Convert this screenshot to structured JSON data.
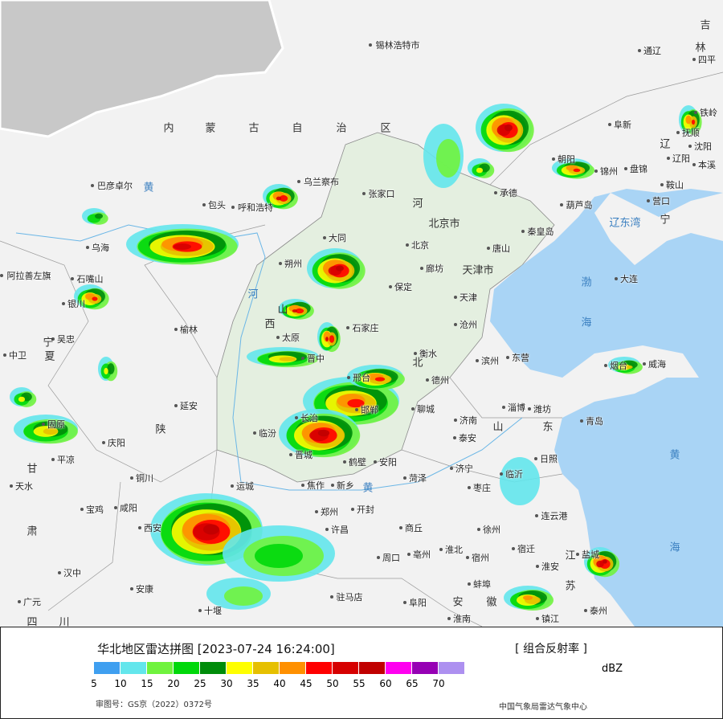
{
  "map": {
    "colors": {
      "land": "#f2f2f2",
      "highlight": "#e6f1e3",
      "sea": "#a9d4f5",
      "foreign": "#c8c8c8",
      "border": "#ffffff",
      "province_line": "#7a7a7a"
    },
    "provinces": [
      "内",
      "蒙",
      "古",
      "自",
      "治",
      "区",
      "河",
      "北京市",
      "天津市",
      "北",
      "宁",
      "夏",
      "山",
      "西",
      "陕",
      "甘",
      "肃",
      "山",
      "东",
      "江",
      "苏",
      "安",
      "徽",
      "辽",
      "宁",
      "吉",
      "林",
      "四",
      "川"
    ],
    "seas": [
      "渤",
      "海",
      "黄",
      "海",
      "辽东湾",
      "黄",
      "河",
      "黄"
    ],
    "cities": [
      "锡林浩特市",
      "通辽",
      "四平",
      "巴彦卓尔",
      "包头",
      "呼和浩特",
      "乌兰察布",
      "张家口",
      "北京",
      "承德",
      "秦皇岛",
      "唐山",
      "廊坊",
      "天津",
      "保定",
      "大同",
      "朔州",
      "乌海",
      "石嘴山",
      "阿拉善左旗",
      "银川",
      "吴忠",
      "中卫",
      "固原",
      "平凉",
      "庆阳",
      "延安",
      "榆林",
      "太原",
      "晋中",
      "石家庄",
      "衡水",
      "沧州",
      "德州",
      "邢台",
      "邯郸",
      "聊城",
      "济南",
      "滨州",
      "东营",
      "淄博",
      "潍坊",
      "青岛",
      "烟台",
      "威海",
      "泰安",
      "济宁",
      "日照",
      "临沂",
      "枣庄",
      "菏泽",
      "临汾",
      "长治",
      "晋城",
      "运城",
      "焦作",
      "新乡",
      "鹤壁",
      "安阳",
      "郑州",
      "开封",
      "许昌",
      "周口",
      "商丘",
      "亳州",
      "淮北",
      "宿州",
      "徐州",
      "连云港",
      "宿迁",
      "淮安",
      "盐城",
      "泰州",
      "镇江",
      "蚌埠",
      "淮南",
      "阜阳",
      "驻马店",
      "西安",
      "咸阳",
      "宝鸡",
      "铜川",
      "汉中",
      "安康",
      "十堰",
      "天水",
      "广元",
      "大连",
      "营口",
      "葫芦岛",
      "锦州",
      "盘锦",
      "鞍山",
      "辽阳",
      "本溪",
      "沈阳",
      "抚顺",
      "铁岭",
      "阜新",
      "朝阳"
    ]
  },
  "legend": {
    "title": "华北地区雷达拼图 [2023-07-24 16:24:00]",
    "product": "[ 组合反射率 ]",
    "unit": "dBZ",
    "colors": [
      "#3f9ff0",
      "#63e6ec",
      "#70f33e",
      "#00d80a",
      "#008c0a",
      "#ffff00",
      "#e6c000",
      "#ff9000",
      "#ff0000",
      "#d60000",
      "#c00000",
      "#ff00f0",
      "#9600b4",
      "#ad90f0"
    ],
    "ticks": [
      "5",
      "10",
      "15",
      "20",
      "25",
      "30",
      "35",
      "40",
      "45",
      "50",
      "55",
      "60",
      "65",
      "70"
    ],
    "approval": "审图号：GS京（2022）0372号",
    "org": "中国气象局雷达气象中心"
  }
}
